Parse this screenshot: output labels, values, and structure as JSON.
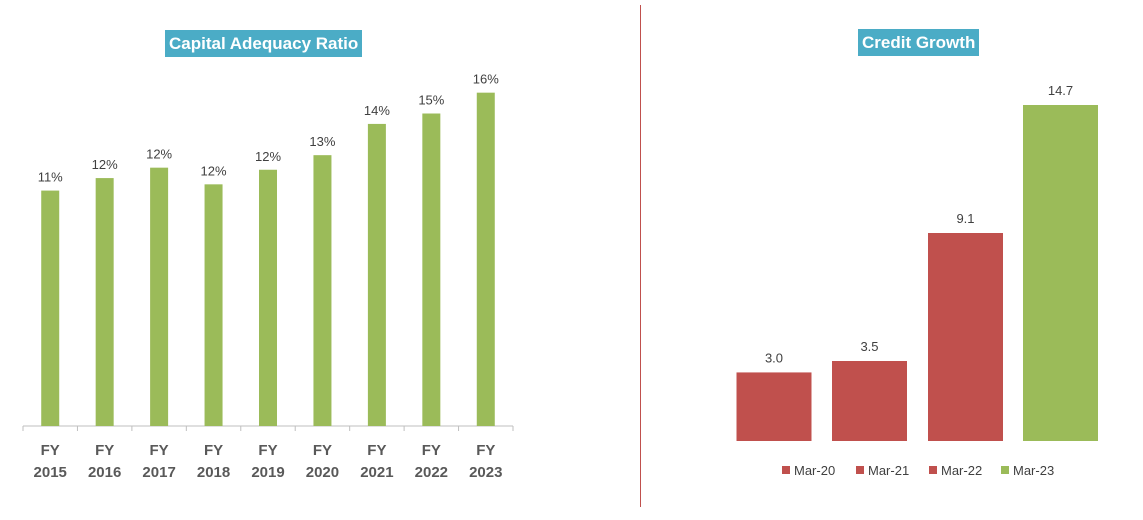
{
  "chart_data": [
    {
      "type": "bar",
      "title": "Capital Adequacy Ratio",
      "categories": [
        {
          "line1": "FY",
          "line2": "2015"
        },
        {
          "line1": "FY",
          "line2": "2016"
        },
        {
          "line1": "FY",
          "line2": "2017"
        },
        {
          "line1": "FY",
          "line2": "2018"
        },
        {
          "line1": "FY",
          "line2": "2019"
        },
        {
          "line1": "FY",
          "line2": "2020"
        },
        {
          "line1": "FY",
          "line2": "2021"
        },
        {
          "line1": "FY",
          "line2": "2022"
        },
        {
          "line1": "FY",
          "line2": "2023"
        }
      ],
      "values": [
        11.3,
        11.9,
        12.4,
        11.6,
        12.3,
        13.0,
        14.5,
        15.0,
        16.0
      ],
      "data_labels": [
        "11%",
        "12%",
        "12%",
        "12%",
        "12%",
        "13%",
        "14%",
        "15%",
        "16%"
      ],
      "ylim": [
        0,
        16.8
      ],
      "grid": false,
      "colors": {
        "bar": "#9bbb59",
        "title_bg": "#4bacc6"
      }
    },
    {
      "type": "bar",
      "title": "Credit Growth",
      "categories": [
        "Mar-20",
        "Mar-21",
        "Mar-22",
        "Mar-23"
      ],
      "values": [
        3.0,
        3.5,
        9.1,
        14.7
      ],
      "data_labels": [
        "3.0",
        "3.5",
        "9.1",
        "14.7"
      ],
      "ylim": [
        0,
        15.5
      ],
      "grid": false,
      "legend": {
        "position": "bottom",
        "entries": [
          "Mar-20",
          "Mar-21",
          "Mar-22",
          "Mar-23"
        ]
      },
      "colors": {
        "series": [
          "#c0504d",
          "#c0504d",
          "#c0504d",
          "#9bbb59"
        ],
        "title_bg": "#4bacc6"
      }
    }
  ]
}
